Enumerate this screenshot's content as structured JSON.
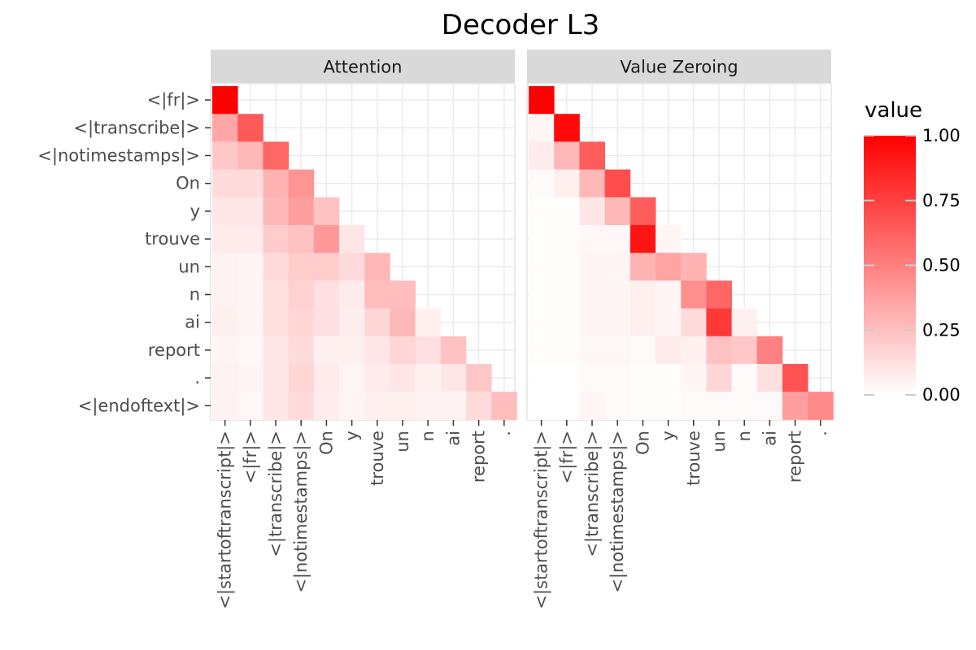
{
  "chart_data": {
    "type": "heatmap",
    "title": "Decoder L3",
    "panels": [
      "Attention",
      "Value Zeroing"
    ],
    "x_categories": [
      "<|startoftranscript|>",
      "<|fr|>",
      "<|transcribe|>",
      "<|notimestamps|>",
      "On",
      "y",
      "trouve",
      "un",
      "n",
      "ai",
      "report",
      "."
    ],
    "y_categories": [
      "<|fr|>",
      "<|transcribe|>",
      "<|notimestamps|>",
      "On",
      "y",
      "trouve",
      "un",
      "n",
      "ai",
      "report",
      ".",
      "<|endoftext|>"
    ],
    "series": [
      {
        "name": "Attention",
        "values": [
          [
            1.0
          ],
          [
            0.35,
            0.65
          ],
          [
            0.22,
            0.28,
            0.6
          ],
          [
            0.14,
            0.14,
            0.3,
            0.42
          ],
          [
            0.1,
            0.1,
            0.28,
            0.38,
            0.24
          ],
          [
            0.08,
            0.08,
            0.2,
            0.24,
            0.4,
            0.1
          ],
          [
            0.05,
            0.04,
            0.14,
            0.2,
            0.2,
            0.14,
            0.28
          ],
          [
            0.05,
            0.04,
            0.12,
            0.18,
            0.12,
            0.08,
            0.26,
            0.26
          ],
          [
            0.06,
            0.04,
            0.12,
            0.16,
            0.12,
            0.07,
            0.16,
            0.28,
            0.06
          ],
          [
            0.04,
            0.03,
            0.1,
            0.14,
            0.06,
            0.06,
            0.1,
            0.16,
            0.12,
            0.24
          ],
          [
            0.05,
            0.04,
            0.1,
            0.16,
            0.08,
            0.04,
            0.08,
            0.1,
            0.06,
            0.1,
            0.22
          ],
          [
            0.05,
            0.03,
            0.1,
            0.14,
            0.07,
            0.04,
            0.06,
            0.06,
            0.05,
            0.05,
            0.14,
            0.26
          ]
        ]
      },
      {
        "name": "Value Zeroing",
        "values": [
          [
            1.0
          ],
          [
            0.04,
            0.96
          ],
          [
            0.08,
            0.28,
            0.64
          ],
          [
            0.02,
            0.06,
            0.28,
            0.7
          ],
          [
            0.01,
            0.01,
            0.1,
            0.28,
            0.64
          ],
          [
            0.01,
            0.01,
            0.03,
            0.03,
            0.92,
            0.04
          ],
          [
            0.01,
            0.01,
            0.04,
            0.04,
            0.3,
            0.36,
            0.3
          ],
          [
            0.01,
            0.01,
            0.04,
            0.04,
            0.06,
            0.04,
            0.44,
            0.6
          ],
          [
            0.01,
            0.01,
            0.04,
            0.04,
            0.06,
            0.04,
            0.14,
            0.78,
            0.06
          ],
          [
            0.01,
            0.01,
            0.03,
            0.03,
            0.02,
            0.08,
            0.06,
            0.24,
            0.22,
            0.5
          ],
          [
            0.0,
            0.0,
            0.02,
            0.02,
            0.01,
            0.01,
            0.04,
            0.16,
            0.02,
            0.12,
            0.68
          ],
          [
            0.0,
            0.0,
            0.04,
            0.02,
            0.01,
            0.01,
            0.02,
            0.02,
            0.02,
            0.02,
            0.38,
            0.46
          ]
        ]
      }
    ],
    "legend": {
      "title": "value",
      "placement": "right",
      "ticks": [
        1.0,
        0.75,
        0.5,
        0.25,
        0.0
      ],
      "tick_labels": [
        "1.00",
        "0.75",
        "0.50",
        "0.25",
        "0.00"
      ],
      "low_color": "#ffffff",
      "high_color": "#ff0000"
    },
    "colors": {
      "panel_background": "#ffffff",
      "strip_background": "#d9d9d9",
      "grid": "#ebebeb",
      "tick_text": "#4d4d4d",
      "tick_mark": "#333333"
    }
  }
}
